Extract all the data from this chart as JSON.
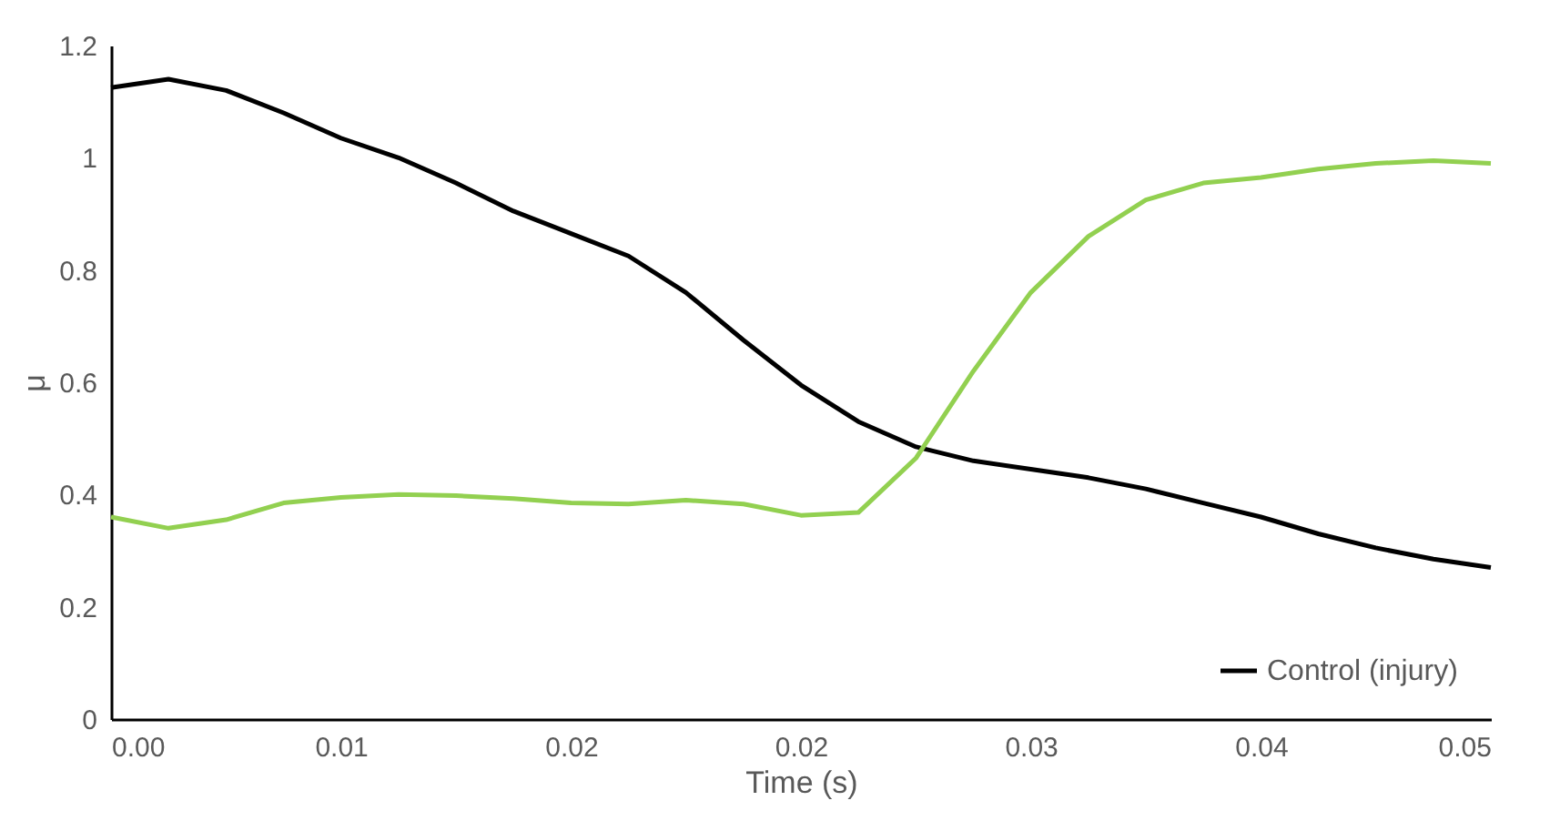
{
  "chart_data": {
    "type": "line",
    "xlabel": "Time (s)",
    "ylabel": "μ",
    "x": [
      0,
      0.00208,
      0.00417,
      0.00625,
      0.00833,
      0.01042,
      0.0125,
      0.01458,
      0.01667,
      0.01875,
      0.02083,
      0.02292,
      0.025,
      0.02708,
      0.02917,
      0.03125,
      0.03333,
      0.03542,
      0.0375,
      0.03958,
      0.04167,
      0.04375,
      0.04583,
      0.04792,
      0.05
    ],
    "series": [
      {
        "name": "Control (injury)",
        "color": "#000000",
        "values": [
          1.125,
          1.14,
          1.12,
          1.08,
          1.035,
          1.0,
          0.955,
          0.905,
          0.865,
          0.825,
          0.76,
          0.675,
          0.595,
          0.53,
          0.485,
          0.46,
          0.445,
          0.43,
          0.41,
          0.385,
          0.36,
          0.33,
          0.305,
          0.285,
          0.27
        ]
      },
      {
        "color": "#92d050",
        "values": [
          0.36,
          0.34,
          0.355,
          0.385,
          0.395,
          0.4,
          0.398,
          0.393,
          0.385,
          0.383,
          0.39,
          0.383,
          0.363,
          0.368,
          0.465,
          0.62,
          0.76,
          0.86,
          0.925,
          0.955,
          0.965,
          0.98,
          0.99,
          0.995,
          0.99
        ]
      }
    ],
    "xlim": [
      0,
      0.05
    ],
    "xticks": [
      {
        "value": 0,
        "label": "0.00"
      },
      {
        "value": 0.00833,
        "label": "0.01"
      },
      {
        "value": 0.01667,
        "label": "0.02"
      },
      {
        "value": 0.025,
        "label": "0.02"
      },
      {
        "value": 0.03333,
        "label": "0.03"
      },
      {
        "value": 0.04167,
        "label": "0.04"
      },
      {
        "value": 0.05,
        "label": "0.05"
      }
    ],
    "ylim": [
      0,
      1.2
    ],
    "yticks": [
      0,
      0.2,
      0.4,
      0.6,
      0.8,
      1,
      1.2
    ],
    "legend": "bottom right",
    "marker": "none",
    "line_style": "solid",
    "grid": false
  }
}
